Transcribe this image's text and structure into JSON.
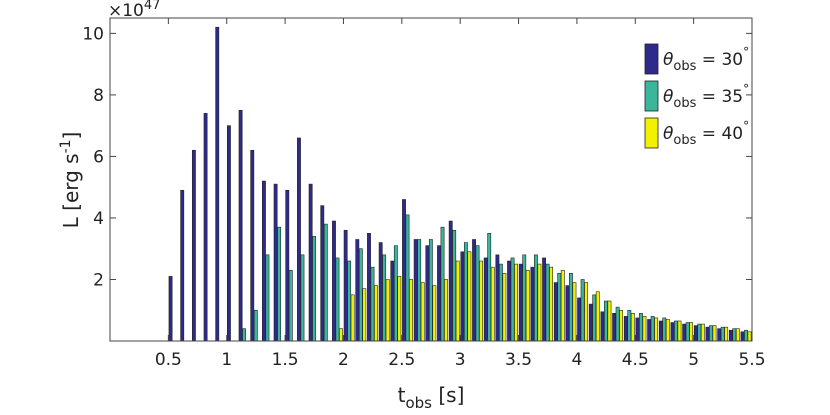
{
  "chart_data": {
    "type": "bar",
    "exponent_label": "×10",
    "exponent_power": "47",
    "xlabel_main": "t",
    "xlabel_sub": "obs",
    "xlabel_unit": " [s]",
    "ylabel_main": "L [erg s",
    "ylabel_sup": "-1",
    "ylabel_end": "]",
    "xlim": [
      0.0,
      5.5
    ],
    "ylim": [
      0,
      10.5
    ],
    "xticks": [
      0.5,
      1,
      1.5,
      2,
      2.5,
      3,
      3.5,
      4,
      4.5,
      5,
      5.5
    ],
    "xtick_labels": [
      "0.5",
      "1",
      "1.5",
      "2",
      "2.5",
      "3",
      "3.5",
      "4",
      "4.5",
      "5",
      "5.5"
    ],
    "yticks": [
      2,
      4,
      6,
      8,
      10
    ],
    "ytick_labels": [
      "2",
      "4",
      "6",
      "8",
      "10"
    ],
    "bin_width": 0.1,
    "legend_position": "top-right",
    "series": [
      {
        "name": "θobs = 30°",
        "legend_symbol": "θ",
        "legend_sub": "obs",
        "legend_value": " = 30",
        "legend_deg": "°",
        "color": "#2e2a8c",
        "x": [
          0.55,
          0.65,
          0.75,
          0.85,
          0.95,
          1.05,
          1.15,
          1.25,
          1.35,
          1.45,
          1.55,
          1.65,
          1.75,
          1.85,
          1.95,
          2.05,
          2.15,
          2.25,
          2.35,
          2.45,
          2.55,
          2.65,
          2.75,
          2.85,
          2.95,
          3.05,
          3.15,
          3.25,
          3.35,
          3.45,
          3.55,
          3.65,
          3.75,
          3.85,
          3.95,
          4.05,
          4.15,
          4.25,
          4.35,
          4.45,
          4.55,
          4.65,
          4.75,
          4.85,
          4.95,
          5.05,
          5.15,
          5.25,
          5.35,
          5.45
        ],
        "values": [
          2.1,
          4.9,
          6.2,
          7.4,
          10.2,
          7.0,
          7.5,
          6.2,
          5.2,
          5.1,
          4.9,
          6.6,
          5.1,
          4.4,
          3.9,
          3.6,
          3.3,
          3.5,
          3.2,
          2.6,
          4.6,
          3.3,
          3.1,
          3.1,
          3.9,
          2.9,
          3.3,
          2.7,
          2.8,
          2.6,
          2.5,
          2.4,
          2.7,
          1.9,
          1.8,
          1.4,
          1.2,
          0.95,
          0.9,
          0.8,
          0.75,
          0.7,
          0.65,
          0.6,
          0.55,
          0.5,
          0.45,
          0.4,
          0.35,
          0.3
        ]
      },
      {
        "name": "θobs = 35°",
        "legend_symbol": "θ",
        "legend_sub": "obs",
        "legend_value": " = 35",
        "legend_deg": "°",
        "color": "#3bb59b",
        "x": [
          1.15,
          1.25,
          1.35,
          1.45,
          1.55,
          1.65,
          1.75,
          1.85,
          1.95,
          2.05,
          2.15,
          2.25,
          2.35,
          2.45,
          2.55,
          2.65,
          2.75,
          2.85,
          2.95,
          3.05,
          3.15,
          3.25,
          3.35,
          3.45,
          3.55,
          3.65,
          3.75,
          3.85,
          3.95,
          4.05,
          4.15,
          4.25,
          4.35,
          4.45,
          4.55,
          4.65,
          4.75,
          4.85,
          4.95,
          5.05,
          5.15,
          5.25,
          5.35,
          5.45
        ],
        "values": [
          0.4,
          1.0,
          2.8,
          3.7,
          2.3,
          2.8,
          3.4,
          3.8,
          2.7,
          2.6,
          3.0,
          2.4,
          2.8,
          3.1,
          4.1,
          3.3,
          3.3,
          3.7,
          3.6,
          3.2,
          3.1,
          3.5,
          2.5,
          2.7,
          2.8,
          2.8,
          2.5,
          2.2,
          2.2,
          2.0,
          1.5,
          1.3,
          1.1,
          1.0,
          0.9,
          0.8,
          0.75,
          0.65,
          0.6,
          0.55,
          0.5,
          0.45,
          0.4,
          0.35
        ]
      },
      {
        "name": "θobs = 40°",
        "legend_symbol": "θ",
        "legend_sub": "obs",
        "legend_value": " = 40",
        "legend_deg": "°",
        "color": "#f2f200",
        "x": [
          1.95,
          2.05,
          2.15,
          2.25,
          2.35,
          2.45,
          2.55,
          2.65,
          2.75,
          2.85,
          2.95,
          3.05,
          3.15,
          3.25,
          3.35,
          3.45,
          3.55,
          3.65,
          3.75,
          3.85,
          3.95,
          4.05,
          4.15,
          4.25,
          4.35,
          4.45,
          4.55,
          4.65,
          4.75,
          4.85,
          4.95,
          5.05,
          5.15,
          5.25,
          5.35,
          5.45
        ],
        "values": [
          0.4,
          1.5,
          1.7,
          1.8,
          2.0,
          2.1,
          2.0,
          1.9,
          1.8,
          2.0,
          2.6,
          2.9,
          2.6,
          2.4,
          2.2,
          2.5,
          2.3,
          2.5,
          2.4,
          2.3,
          1.9,
          1.9,
          1.6,
          1.3,
          1.0,
          0.9,
          0.8,
          0.75,
          0.7,
          0.65,
          0.6,
          0.55,
          0.5,
          0.45,
          0.4,
          0.3
        ]
      }
    ]
  }
}
